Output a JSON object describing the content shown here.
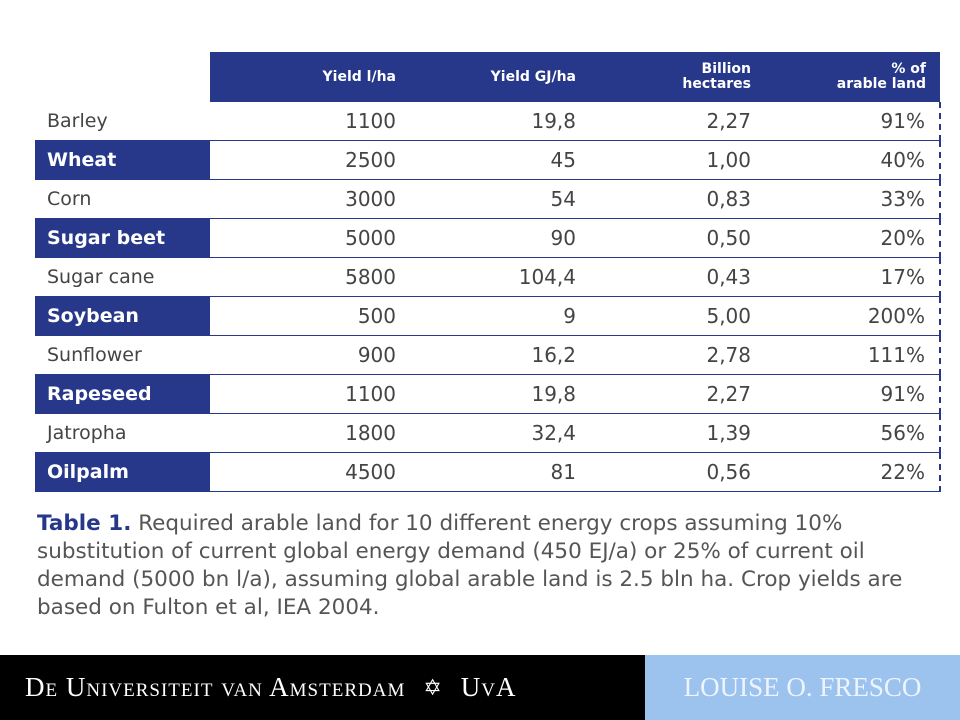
{
  "table": {
    "header": [
      "Yield l/ha",
      "Yield GJ/ha",
      "Billion\nhectares",
      "% of\narable land"
    ],
    "rows": [
      [
        "Barley",
        "1100",
        "19,8",
        "2,27",
        "91%"
      ],
      [
        "Wheat",
        "2500",
        "45",
        "1,00",
        "40%"
      ],
      [
        "Corn",
        "3000",
        "54",
        "0,83",
        "33%"
      ],
      [
        "Sugar beet",
        "5000",
        "90",
        "0,50",
        "20%"
      ],
      [
        "Sugar cane",
        "5800",
        "104,4",
        "0,43",
        "17%"
      ],
      [
        "Soybean",
        "500",
        "9",
        "5,00",
        "200%"
      ],
      [
        "Sunflower",
        "900",
        "16,2",
        "2,78",
        "111%"
      ],
      [
        "Rapeseed",
        "1100",
        "19,8",
        "2,27",
        "91%"
      ],
      [
        "Jatropha",
        "1800",
        "32,4",
        "1,39",
        "56%"
      ],
      [
        "Oilpalm",
        "4500",
        "81",
        "0,56",
        "22%"
      ]
    ]
  },
  "caption": {
    "label": "Table 1.",
    "text": "Required arable land for 10 different energy crops assuming 10% substitution of current global energy demand (450 EJ/a) or 25% of current oil demand (5000 bn l/a), assuming global arable land is 2.5 bln ha. Crop yields are based on Fulton et al, IEA 2004."
  },
  "footer": {
    "university": "De Universiteit van Amsterdam",
    "short": "UvA",
    "author": "LOUISE O. FRESCO"
  }
}
